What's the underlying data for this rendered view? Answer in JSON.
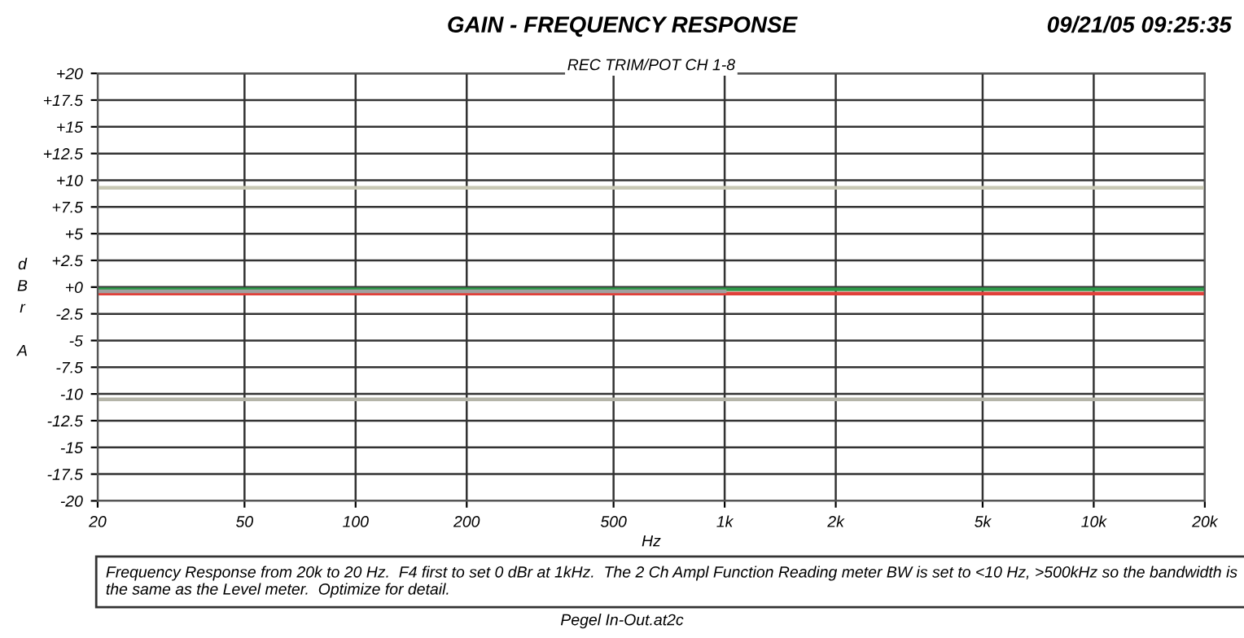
{
  "chart_data": {
    "type": "line",
    "title": "GAIN - FREQUENCY RESPONSE",
    "subtitle": "REC TRIM/POT CH 1-8",
    "xlabel": "Hz",
    "ylabel": "dBr A",
    "annotations": [
      "09/21/05 09:25:35",
      "Frequency Response from 20k to 20 Hz.  F4 first to set 0 dBr at 1kHz.  The 2 Ch Ampl Function Reading meter BW is set to <10 Hz, >500kHz so the bandwidth is the same as the Level meter.  Optimize for detail.",
      "Pegel In-Out.at2c"
    ],
    "log": "x",
    "xlim": [
      20,
      20000
    ],
    "xticks": [
      20,
      50,
      100,
      200,
      500,
      {
        "value": 1000,
        "label": "1k"
      },
      {
        "value": 2000,
        "label": "2k"
      },
      {
        "value": 5000,
        "label": "5k"
      },
      {
        "value": 10000,
        "label": "10k"
      },
      {
        "value": 20000,
        "label": "20k"
      }
    ],
    "ylim": [
      -20,
      20
    ],
    "yticks": [
      {
        "value": 20,
        "label": "+20"
      },
      {
        "value": 17.5,
        "label": "+17.5"
      },
      {
        "value": 15,
        "label": "+15"
      },
      {
        "value": 12.5,
        "label": "+12.5"
      },
      {
        "value": 10,
        "label": "+10"
      },
      {
        "value": 7.5,
        "label": "+7.5"
      },
      {
        "value": 5,
        "label": "+5"
      },
      {
        "value": 2.5,
        "label": "+2.5"
      },
      {
        "value": 0,
        "label": "+0"
      },
      -2.5,
      -5,
      -7.5,
      -10,
      -12.5,
      -15,
      -17.5,
      -20
    ],
    "grid": true,
    "legend": false,
    "marker": "none",
    "line_style": "solid",
    "series": [
      {
        "color": "#c8c8b4",
        "x": [
          20,
          20000
        ],
        "values": [
          9.3,
          9.3
        ]
      },
      {
        "color": "#2e9a4a",
        "x": [
          20,
          20000
        ],
        "values": [
          -0.2,
          -0.2
        ]
      },
      {
        "color": "#e0403a",
        "x": [
          20,
          20000
        ],
        "values": [
          -0.6,
          -0.6
        ]
      },
      {
        "color": "#b4b4a8",
        "x": [
          20,
          20000
        ],
        "values": [
          -10.5,
          -10.5
        ]
      },
      {
        "color": "#a0a0a0",
        "x": [
          20,
          1000
        ],
        "values": [
          -0.4,
          -0.4
        ]
      }
    ]
  }
}
